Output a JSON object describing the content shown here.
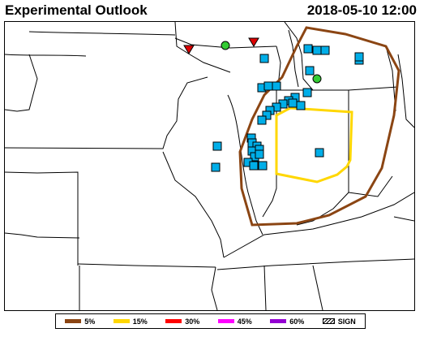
{
  "header": {
    "title": "Experimental Outlook",
    "timestamp": "2018-05-10 12:00"
  },
  "legend": {
    "items": [
      {
        "label": "5%",
        "color": "#8b4513"
      },
      {
        "label": "15%",
        "color": "#ffd700"
      },
      {
        "label": "30%",
        "color": "#ff0000"
      },
      {
        "label": "45%",
        "color": "#ff00ff"
      },
      {
        "label": "60%",
        "color": "#9400d3"
      }
    ],
    "sign_label": "SIGN"
  },
  "map": {
    "report_colors": {
      "square": "#00aee8",
      "circle": "#33cc33",
      "triangle": "#dd0000"
    },
    "outline_colors": {
      "prob_5": "#8b4513",
      "prob_15": "#ffd700"
    }
  }
}
